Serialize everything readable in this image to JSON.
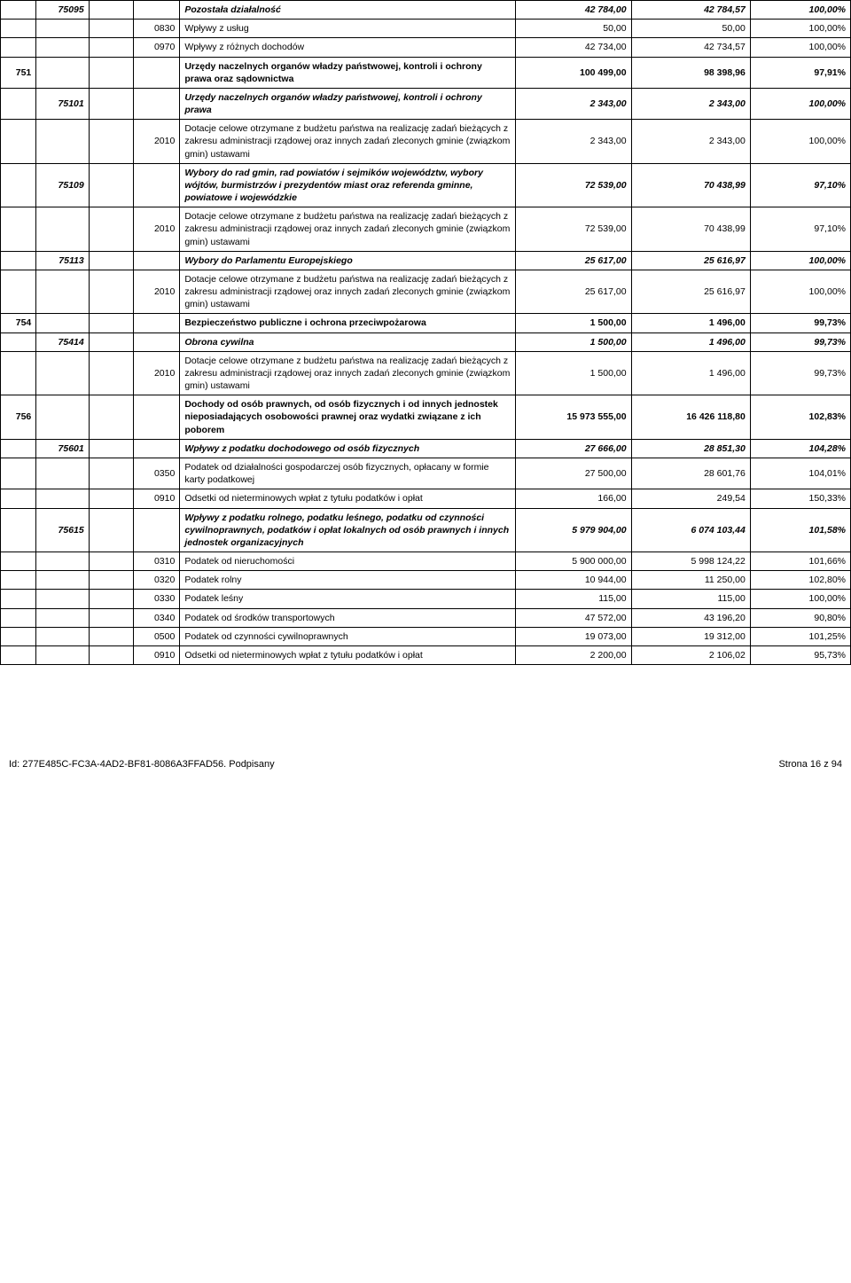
{
  "rows": [
    {
      "c1": "",
      "c2": "75095",
      "c3": "",
      "c4": "",
      "desc": "Pozostała działalność",
      "v1": "42 784,00",
      "v2": "42 784,57",
      "pct": "100,00%",
      "bold": true,
      "italic": true
    },
    {
      "c1": "",
      "c2": "",
      "c3": "",
      "c4": "0830",
      "desc": "Wpływy z usług",
      "v1": "50,00",
      "v2": "50,00",
      "pct": "100,00%"
    },
    {
      "c1": "",
      "c2": "",
      "c3": "",
      "c4": "0970",
      "desc": "Wpływy z różnych dochodów",
      "v1": "42 734,00",
      "v2": "42 734,57",
      "pct": "100,00%"
    },
    {
      "c1": "751",
      "c2": "",
      "c3": "",
      "c4": "",
      "desc": "Urzędy naczelnych organów władzy państwowej, kontroli i ochrony prawa oraz sądownictwa",
      "v1": "100 499,00",
      "v2": "98 398,96",
      "pct": "97,91%",
      "bold": true
    },
    {
      "c1": "",
      "c2": "75101",
      "c3": "",
      "c4": "",
      "desc": "Urzędy naczelnych organów władzy państwowej, kontroli i ochrony prawa",
      "v1": "2 343,00",
      "v2": "2 343,00",
      "pct": "100,00%",
      "bold": true,
      "italic": true
    },
    {
      "c1": "",
      "c2": "",
      "c3": "",
      "c4": "2010",
      "desc": "Dotacje celowe otrzymane z budżetu państwa na realizację zadań bieżących z zakresu administracji rządowej oraz innych zadań zleconych gminie (związkom gmin) ustawami",
      "v1": "2 343,00",
      "v2": "2 343,00",
      "pct": "100,00%"
    },
    {
      "c1": "",
      "c2": "75109",
      "c3": "",
      "c4": "",
      "desc": "Wybory do rad gmin, rad powiatów i sejmików województw, wybory wójtów, burmistrzów i prezydentów miast oraz referenda gminne, powiatowe i wojewódzkie",
      "v1": "72 539,00",
      "v2": "70 438,99",
      "pct": "97,10%",
      "bold": true,
      "italic": true
    },
    {
      "c1": "",
      "c2": "",
      "c3": "",
      "c4": "2010",
      "desc": "Dotacje celowe otrzymane z budżetu państwa na realizację zadań bieżących z zakresu administracji rządowej oraz innych zadań zleconych gminie (związkom gmin) ustawami",
      "v1": "72 539,00",
      "v2": "70 438,99",
      "pct": "97,10%"
    },
    {
      "c1": "",
      "c2": "75113",
      "c3": "",
      "c4": "",
      "desc": "Wybory do Parlamentu Europejskiego",
      "v1": "25 617,00",
      "v2": "25 616,97",
      "pct": "100,00%",
      "bold": true,
      "italic": true
    },
    {
      "c1": "",
      "c2": "",
      "c3": "",
      "c4": "2010",
      "desc": "Dotacje celowe otrzymane z budżetu państwa na realizację zadań bieżących z zakresu administracji rządowej oraz innych zadań zleconych gminie (związkom gmin) ustawami",
      "v1": "25 617,00",
      "v2": "25 616,97",
      "pct": "100,00%"
    },
    {
      "c1": "754",
      "c2": "",
      "c3": "",
      "c4": "",
      "desc": "Bezpieczeństwo publiczne i ochrona przeciwpożarowa",
      "v1": "1 500,00",
      "v2": "1 496,00",
      "pct": "99,73%",
      "bold": true
    },
    {
      "c1": "",
      "c2": "75414",
      "c3": "",
      "c4": "",
      "desc": "Obrona cywilna",
      "v1": "1 500,00",
      "v2": "1 496,00",
      "pct": "99,73%",
      "bold": true,
      "italic": true
    },
    {
      "c1": "",
      "c2": "",
      "c3": "",
      "c4": "2010",
      "desc": "Dotacje celowe otrzymane z budżetu państwa na realizację zadań bieżących z zakresu administracji rządowej oraz innych zadań zleconych gminie (związkom gmin) ustawami",
      "v1": "1 500,00",
      "v2": "1 496,00",
      "pct": "99,73%"
    },
    {
      "c1": "756",
      "c2": "",
      "c3": "",
      "c4": "",
      "desc": "Dochody od osób prawnych, od osób fizycznych i od innych jednostek nieposiadających osobowości prawnej oraz wydatki związane z ich poborem",
      "v1": "15 973 555,00",
      "v2": "16 426 118,80",
      "pct": "102,83%",
      "bold": true
    },
    {
      "c1": "",
      "c2": "75601",
      "c3": "",
      "c4": "",
      "desc": "Wpływy z podatku dochodowego od osób fizycznych",
      "v1": "27 666,00",
      "v2": "28 851,30",
      "pct": "104,28%",
      "bold": true,
      "italic": true
    },
    {
      "c1": "",
      "c2": "",
      "c3": "",
      "c4": "0350",
      "desc": "Podatek od działalności gospodarczej osób fizycznych, opłacany w formie karty podatkowej",
      "v1": "27 500,00",
      "v2": "28 601,76",
      "pct": "104,01%"
    },
    {
      "c1": "",
      "c2": "",
      "c3": "",
      "c4": "0910",
      "desc": "Odsetki od nieterminowych wpłat z tytułu podatków i opłat",
      "v1": "166,00",
      "v2": "249,54",
      "pct": "150,33%"
    },
    {
      "c1": "",
      "c2": "75615",
      "c3": "",
      "c4": "",
      "desc": "Wpływy z podatku rolnego, podatku leśnego, podatku od czynności cywilnoprawnych, podatków i opłat lokalnych od osób prawnych i innych jednostek organizacyjnych",
      "v1": "5 979 904,00",
      "v2": "6 074 103,44",
      "pct": "101,58%",
      "bold": true,
      "italic": true
    },
    {
      "c1": "",
      "c2": "",
      "c3": "",
      "c4": "0310",
      "desc": "Podatek od nieruchomości",
      "v1": "5 900 000,00",
      "v2": "5 998 124,22",
      "pct": "101,66%"
    },
    {
      "c1": "",
      "c2": "",
      "c3": "",
      "c4": "0320",
      "desc": "Podatek rolny",
      "v1": "10 944,00",
      "v2": "11 250,00",
      "pct": "102,80%"
    },
    {
      "c1": "",
      "c2": "",
      "c3": "",
      "c4": "0330",
      "desc": "Podatek leśny",
      "v1": "115,00",
      "v2": "115,00",
      "pct": "100,00%"
    },
    {
      "c1": "",
      "c2": "",
      "c3": "",
      "c4": "0340",
      "desc": "Podatek od środków transportowych",
      "v1": "47 572,00",
      "v2": "43 196,20",
      "pct": "90,80%"
    },
    {
      "c1": "",
      "c2": "",
      "c3": "",
      "c4": "0500",
      "desc": "Podatek od czynności cywilnoprawnych",
      "v1": "19 073,00",
      "v2": "19 312,00",
      "pct": "101,25%"
    },
    {
      "c1": "",
      "c2": "",
      "c3": "",
      "c4": "0910",
      "desc": "Odsetki od nieterminowych wpłat z tytułu podatków i opłat",
      "v1": "2 200,00",
      "v2": "2 106,02",
      "pct": "95,73%"
    }
  ],
  "footer": {
    "left": "Id: 277E485C-FC3A-4AD2-BF81-8086A3FFAD56. Podpisany",
    "right": "Strona 16 z 94"
  }
}
